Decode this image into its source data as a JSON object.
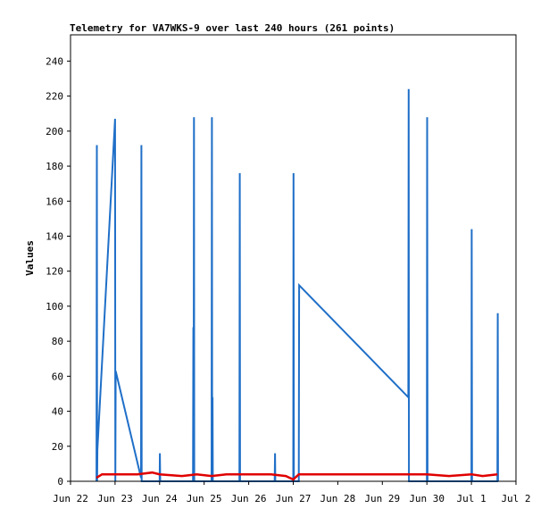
{
  "chart_data": {
    "type": "line",
    "title": "Telemetry for VA7WKS-9 over last 240 hours (261 points)",
    "ylabel": "Values",
    "xlabel": "",
    "ylim": [
      0,
      255
    ],
    "xlim": [
      "Jun 22",
      "Jul 2"
    ],
    "y_ticks": [
      0,
      20,
      40,
      60,
      80,
      100,
      120,
      140,
      160,
      180,
      200,
      220,
      240
    ],
    "x_ticks": [
      "Jun 22",
      "Jun 23",
      "Jun 24",
      "Jun 25",
      "Jun 26",
      "Jun 27",
      "Jun 28",
      "Jun 29",
      "Jun 30",
      "Jul 1",
      "Jul 2"
    ],
    "grid": false,
    "legend": "none",
    "colors": {
      "series_blue": "#1f6fc8",
      "series_red": "#e00000",
      "axis": "#000000"
    },
    "series": [
      {
        "color": "#1f6fc8",
        "points": [
          [
            "Jun 22 14:00",
            0
          ],
          [
            "Jun 22 14:10",
            192
          ],
          [
            "Jun 22 14:20",
            0
          ],
          [
            "Jun 22 14:30",
            18
          ],
          [
            "Jun 23 00:00",
            207
          ],
          [
            "Jun 23 00:10",
            0
          ],
          [
            "Jun 23 00:20",
            63
          ],
          [
            "Jun 23 14:00",
            2
          ],
          [
            "Jun 23 14:10",
            192
          ],
          [
            "Jun 23 14:20",
            0
          ],
          [
            "Jun 24 00:00",
            0
          ],
          [
            "Jun 24 00:10",
            16
          ],
          [
            "Jun 24 00:20",
            0
          ],
          [
            "Jun 24 18:00",
            0
          ],
          [
            "Jun 24 18:10",
            88
          ],
          [
            "Jun 24 18:20",
            0
          ],
          [
            "Jun 24 18:30",
            208
          ],
          [
            "Jun 24 18:40",
            0
          ],
          [
            "Jun 25 04:00",
            0
          ],
          [
            "Jun 25 04:10",
            208
          ],
          [
            "Jun 25 04:20",
            0
          ],
          [
            "Jun 25 04:30",
            48
          ],
          [
            "Jun 25 04:40",
            0
          ],
          [
            "Jun 25 19:00",
            0
          ],
          [
            "Jun 25 19:10",
            176
          ],
          [
            "Jun 25 19:20",
            0
          ],
          [
            "Jun 26 14:00",
            0
          ],
          [
            "Jun 26 14:10",
            16
          ],
          [
            "Jun 26 14:20",
            0
          ],
          [
            "Jun 27 00:00",
            0
          ],
          [
            "Jun 27 00:10",
            176
          ],
          [
            "Jun 27 00:20",
            0
          ],
          [
            "Jun 27 03:00",
            0
          ],
          [
            "Jun 27 03:10",
            112
          ],
          [
            "Jun 29 14:00",
            48
          ],
          [
            "Jun 29 14:10",
            224
          ],
          [
            "Jun 29 14:20",
            0
          ],
          [
            "Jun 30 00:00",
            0
          ],
          [
            "Jun 30 00:10",
            208
          ],
          [
            "Jun 30 00:20",
            0
          ],
          [
            "Jul 1 00:00",
            0
          ],
          [
            "Jul 1 00:10",
            144
          ],
          [
            "Jul 1 00:20",
            0
          ],
          [
            "Jul 1 14:00",
            0
          ],
          [
            "Jul 1 14:10",
            96
          ],
          [
            "Jul 1 14:20",
            0
          ]
        ]
      },
      {
        "color": "#e00000",
        "points": [
          [
            "Jun 22 14:00",
            2
          ],
          [
            "Jun 22 17:00",
            4
          ],
          [
            "Jun 23 00:00",
            4
          ],
          [
            "Jun 23 03:00",
            4
          ],
          [
            "Jun 23 12:00",
            4
          ],
          [
            "Jun 23 20:00",
            5
          ],
          [
            "Jun 24 00:00",
            4
          ],
          [
            "Jun 24 12:00",
            3
          ],
          [
            "Jun 24 20:00",
            4
          ],
          [
            "Jun 25 04:00",
            3
          ],
          [
            "Jun 25 12:00",
            4
          ],
          [
            "Jun 25 20:00",
            4
          ],
          [
            "Jun 26 12:00",
            4
          ],
          [
            "Jun 26 20:00",
            3
          ],
          [
            "Jun 27 00:00",
            1
          ],
          [
            "Jun 27 03:00",
            4
          ],
          [
            "Jun 28 00:00",
            4
          ],
          [
            "Jun 29 00:00",
            4
          ],
          [
            "Jun 30 00:00",
            4
          ],
          [
            "Jun 30 12:00",
            3
          ],
          [
            "Jul 1 00:00",
            4
          ],
          [
            "Jul 1 06:00",
            3
          ],
          [
            "Jul 1 14:00",
            4
          ]
        ]
      }
    ]
  }
}
